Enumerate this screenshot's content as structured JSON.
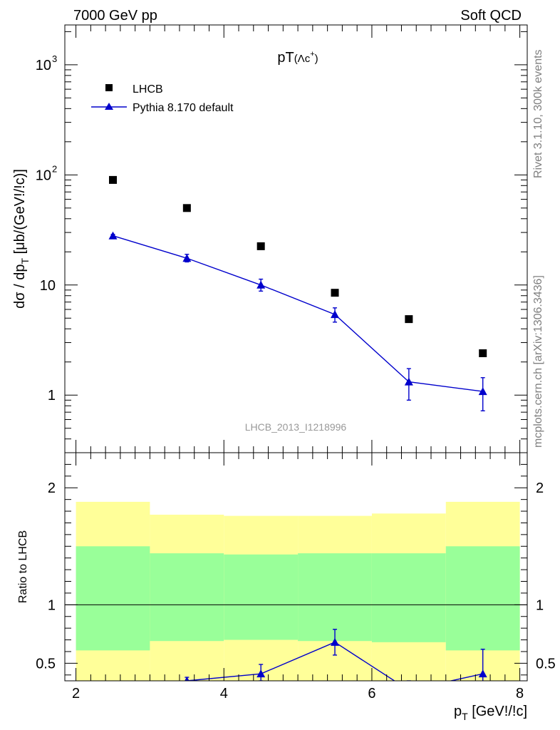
{
  "header": {
    "left": "7000 GeV pp",
    "right": "Soft QCD"
  },
  "side_labels": {
    "rivet": "Rivet 3.1.10,  300k events",
    "site": "mcplots.cern.ch [arXiv:1306.3436]"
  },
  "watermark": "LHCB_2013_I1218996",
  "colors": {
    "data": "#000000",
    "mc": "#0000cc",
    "band_outer": "#ffff99",
    "band_inner": "#99ff99",
    "watermark": "#999999",
    "side_text": "#808080"
  },
  "chart_data": [
    {
      "type": "scatter",
      "title_main": "pT",
      "title_sub": "(Λc",
      "title_sup": "+",
      "title_close": ")",
      "ylabel": "dσ / dp",
      "ylabel_sub": "T",
      "ylabel_unit": " [μb/(GeV!/!c)]",
      "yscale": "log",
      "xlim": [
        1.85,
        8.1
      ],
      "ylim": [
        0.3,
        2300
      ],
      "y_ticks": [
        {
          "value": 1,
          "label": "1"
        },
        {
          "value": 10,
          "label": "10"
        },
        {
          "value": 100,
          "label": "10",
          "exp": "2"
        },
        {
          "value": 1000,
          "label": "10",
          "exp": "3"
        }
      ],
      "legend": [
        {
          "label": "LHCB",
          "marker": "square"
        },
        {
          "label": "Pythia 8.170 default",
          "marker": "triangle-line"
        }
      ],
      "series": [
        {
          "name": "LHCB",
          "x": [
            2.5,
            3.5,
            4.5,
            5.5,
            6.5,
            7.5
          ],
          "y": [
            90,
            50,
            22.5,
            8.5,
            4.9,
            2.4
          ]
        },
        {
          "name": "Pythia 8.170 default",
          "x": [
            2.5,
            3.5,
            4.5,
            5.5,
            6.5,
            7.5
          ],
          "y": [
            28,
            17.5,
            10,
            5.4,
            1.32,
            1.08
          ],
          "err_low": [
            0.8,
            1.3,
            1.2,
            0.8,
            0.42,
            0.36
          ],
          "err_high": [
            0.8,
            1.5,
            1.3,
            0.8,
            0.42,
            0.36
          ]
        }
      ]
    },
    {
      "type": "line",
      "ylabel": "Ratio to LHCB",
      "xlabel": "p",
      "xlabel_sub": "T",
      "xlabel_unit": " [GeV!/!c]",
      "xlim": [
        1.85,
        8.1
      ],
      "ylim": [
        0.35,
        2.3
      ],
      "x_ticks": [
        {
          "value": 2,
          "label": "2"
        },
        {
          "value": 4,
          "label": "4"
        },
        {
          "value": 6,
          "label": "6"
        },
        {
          "value": 8,
          "label": "8"
        }
      ],
      "y_ticks": [
        {
          "value": 0.5,
          "label": "0.5"
        },
        {
          "value": 1,
          "label": "1"
        },
        {
          "value": 2,
          "label": "2"
        }
      ],
      "reference_line": 1,
      "bands": [
        {
          "x_low": 2,
          "x_high": 3,
          "outer_low": 0.35,
          "outer_high": 1.88,
          "inner_low": 0.61,
          "inner_high": 1.5
        },
        {
          "x_low": 3,
          "x_high": 4,
          "outer_low": 0.35,
          "outer_high": 1.77,
          "inner_low": 0.69,
          "inner_high": 1.44
        },
        {
          "x_low": 4,
          "x_high": 5,
          "outer_low": 0.35,
          "outer_high": 1.76,
          "inner_low": 0.7,
          "inner_high": 1.43
        },
        {
          "x_low": 5,
          "x_high": 6,
          "outer_low": 0.35,
          "outer_high": 1.76,
          "inner_low": 0.69,
          "inner_high": 1.44
        },
        {
          "x_low": 6,
          "x_high": 7,
          "outer_low": 0.35,
          "outer_high": 1.78,
          "inner_low": 0.68,
          "inner_high": 1.44
        },
        {
          "x_low": 7,
          "x_high": 8,
          "outer_low": 0.35,
          "outer_high": 1.88,
          "inner_low": 0.61,
          "inner_high": 1.5
        }
      ],
      "series": [
        {
          "name": "Pythia 8.170 default",
          "x": [
            2.5,
            3.5,
            4.5,
            5.5,
            6.5,
            7.5
          ],
          "y": [
            0.31,
            0.35,
            0.41,
            0.68,
            0.27,
            0.41
          ],
          "err_low": [
            0.02,
            0.03,
            0.06,
            0.11,
            0.08,
            0.21
          ],
          "err_high": [
            0.02,
            0.03,
            0.08,
            0.11,
            0.08,
            0.21
          ]
        }
      ]
    }
  ]
}
